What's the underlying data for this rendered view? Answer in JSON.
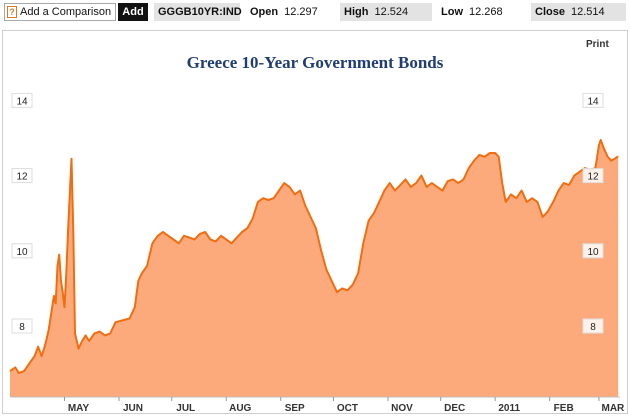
{
  "toolbar": {
    "help_glyph": "?",
    "compare_label": "Add a Comparison",
    "add_label": "Add",
    "symbol": "GGGB10YR:IND",
    "open_label": "Open",
    "open_value": "12.297",
    "high_label": "High",
    "high_value": "12.524",
    "low_label": "Low",
    "low_value": "12.268",
    "close_label": "Close",
    "close_value": "12.514"
  },
  "print_label": "Print",
  "colors": {
    "line": "#f06d10",
    "fill": "#fcaa7c",
    "title": "#1f3d73"
  },
  "chart_data": {
    "type": "area",
    "title": "Greece 10-Year Government Bonds",
    "xlabel": "",
    "ylabel": "",
    "ylim": [
      6.6,
      14.8
    ],
    "grid": false,
    "y_ticks": [
      "14",
      "12",
      "10",
      "8"
    ],
    "x_ticks": [
      "MAY",
      "JUN",
      "JUL",
      "AUG",
      "SEP",
      "OCT",
      "NOV",
      "DEC",
      "2011",
      "FEB",
      "MAR"
    ],
    "points": [
      [
        "2010-03-31",
        6.8
      ],
      [
        "2010-04-03",
        6.9
      ],
      [
        "2010-04-05",
        6.75
      ],
      [
        "2010-04-08",
        6.8
      ],
      [
        "2010-04-11",
        7.0
      ],
      [
        "2010-04-14",
        7.2
      ],
      [
        "2010-04-16",
        7.45
      ],
      [
        "2010-04-18",
        7.2
      ],
      [
        "2010-04-20",
        7.5
      ],
      [
        "2010-04-22",
        7.9
      ],
      [
        "2010-04-24",
        8.5
      ],
      [
        "2010-04-25",
        8.8
      ],
      [
        "2010-04-26",
        8.6
      ],
      [
        "2010-04-27",
        9.6
      ],
      [
        "2010-04-28",
        9.9
      ],
      [
        "2010-04-29",
        9.2
      ],
      [
        "2010-04-30",
        8.9
      ],
      [
        "2010-05-01",
        8.5
      ],
      [
        "2010-05-02",
        9.4
      ],
      [
        "2010-05-03",
        10.5
      ],
      [
        "2010-05-04",
        11.5
      ],
      [
        "2010-05-05",
        12.45
      ],
      [
        "2010-05-06",
        10.5
      ],
      [
        "2010-05-07",
        7.8
      ],
      [
        "2010-05-09",
        7.4
      ],
      [
        "2010-05-11",
        7.6
      ],
      [
        "2010-05-13",
        7.75
      ],
      [
        "2010-05-15",
        7.6
      ],
      [
        "2010-05-18",
        7.8
      ],
      [
        "2010-05-21",
        7.85
      ],
      [
        "2010-05-24",
        7.75
      ],
      [
        "2010-05-27",
        7.8
      ],
      [
        "2010-05-30",
        8.1
      ],
      [
        "2010-06-03",
        8.15
      ],
      [
        "2010-06-07",
        8.2
      ],
      [
        "2010-06-10",
        8.5
      ],
      [
        "2010-06-12",
        9.2
      ],
      [
        "2010-06-14",
        9.4
      ],
      [
        "2010-06-17",
        9.6
      ],
      [
        "2010-06-20",
        10.2
      ],
      [
        "2010-06-23",
        10.4
      ],
      [
        "2010-06-26",
        10.5
      ],
      [
        "2010-06-29",
        10.4
      ],
      [
        "2010-07-02",
        10.3
      ],
      [
        "2010-07-05",
        10.2
      ],
      [
        "2010-07-08",
        10.4
      ],
      [
        "2010-07-11",
        10.35
      ],
      [
        "2010-07-14",
        10.3
      ],
      [
        "2010-07-17",
        10.45
      ],
      [
        "2010-07-20",
        10.5
      ],
      [
        "2010-07-23",
        10.3
      ],
      [
        "2010-07-26",
        10.25
      ],
      [
        "2010-07-29",
        10.4
      ],
      [
        "2010-08-01",
        10.3
      ],
      [
        "2010-08-04",
        10.2
      ],
      [
        "2010-08-07",
        10.35
      ],
      [
        "2010-08-10",
        10.5
      ],
      [
        "2010-08-13",
        10.6
      ],
      [
        "2010-08-16",
        10.85
      ],
      [
        "2010-08-19",
        11.3
      ],
      [
        "2010-08-22",
        11.4
      ],
      [
        "2010-08-25",
        11.35
      ],
      [
        "2010-08-28",
        11.4
      ],
      [
        "2010-08-31",
        11.6
      ],
      [
        "2010-09-03",
        11.8
      ],
      [
        "2010-09-06",
        11.7
      ],
      [
        "2010-09-09",
        11.5
      ],
      [
        "2010-09-12",
        11.6
      ],
      [
        "2010-09-15",
        11.2
      ],
      [
        "2010-09-18",
        10.9
      ],
      [
        "2010-09-21",
        10.6
      ],
      [
        "2010-09-24",
        10.0
      ],
      [
        "2010-09-27",
        9.5
      ],
      [
        "2010-09-30",
        9.2
      ],
      [
        "2010-10-03",
        8.9
      ],
      [
        "2010-10-06",
        9.0
      ],
      [
        "2010-10-09",
        8.95
      ],
      [
        "2010-10-12",
        9.1
      ],
      [
        "2010-10-15",
        9.4
      ],
      [
        "2010-10-18",
        10.2
      ],
      [
        "2010-10-21",
        10.8
      ],
      [
        "2010-10-24",
        11.0
      ],
      [
        "2010-10-27",
        11.3
      ],
      [
        "2010-10-30",
        11.6
      ],
      [
        "2010-11-02",
        11.8
      ],
      [
        "2010-11-05",
        11.6
      ],
      [
        "2010-11-08",
        11.75
      ],
      [
        "2010-11-11",
        11.9
      ],
      [
        "2010-11-14",
        11.7
      ],
      [
        "2010-11-17",
        11.8
      ],
      [
        "2010-11-20",
        12.0
      ],
      [
        "2010-11-23",
        11.7
      ],
      [
        "2010-11-26",
        11.8
      ],
      [
        "2010-11-29",
        11.7
      ],
      [
        "2010-12-02",
        11.6
      ],
      [
        "2010-12-05",
        11.85
      ],
      [
        "2010-12-08",
        11.9
      ],
      [
        "2010-12-11",
        11.8
      ],
      [
        "2010-12-14",
        11.9
      ],
      [
        "2010-12-17",
        12.2
      ],
      [
        "2010-12-20",
        12.4
      ],
      [
        "2010-12-23",
        12.55
      ],
      [
        "2010-12-26",
        12.5
      ],
      [
        "2010-12-29",
        12.6
      ],
      [
        "2011-01-01",
        12.6
      ],
      [
        "2011-01-03",
        12.5
      ],
      [
        "2011-01-05",
        11.8
      ],
      [
        "2011-01-07",
        11.3
      ],
      [
        "2011-01-10",
        11.5
      ],
      [
        "2011-01-13",
        11.4
      ],
      [
        "2011-01-16",
        11.6
      ],
      [
        "2011-01-19",
        11.3
      ],
      [
        "2011-01-22",
        11.4
      ],
      [
        "2011-01-25",
        11.3
      ],
      [
        "2011-01-28",
        10.9
      ],
      [
        "2011-01-31",
        11.05
      ],
      [
        "2011-02-03",
        11.3
      ],
      [
        "2011-02-06",
        11.6
      ],
      [
        "2011-02-09",
        11.8
      ],
      [
        "2011-02-12",
        11.75
      ],
      [
        "2011-02-15",
        12.0
      ],
      [
        "2011-02-18",
        12.1
      ],
      [
        "2011-02-21",
        12.2
      ],
      [
        "2011-02-24",
        12.15
      ],
      [
        "2011-02-27",
        12.2
      ],
      [
        "2011-03-01",
        12.8
      ],
      [
        "2011-03-02",
        12.95
      ],
      [
        "2011-03-04",
        12.7
      ],
      [
        "2011-03-06",
        12.5
      ],
      [
        "2011-03-08",
        12.4
      ],
      [
        "2011-03-10",
        12.45
      ],
      [
        "2011-03-12",
        12.514
      ]
    ]
  }
}
